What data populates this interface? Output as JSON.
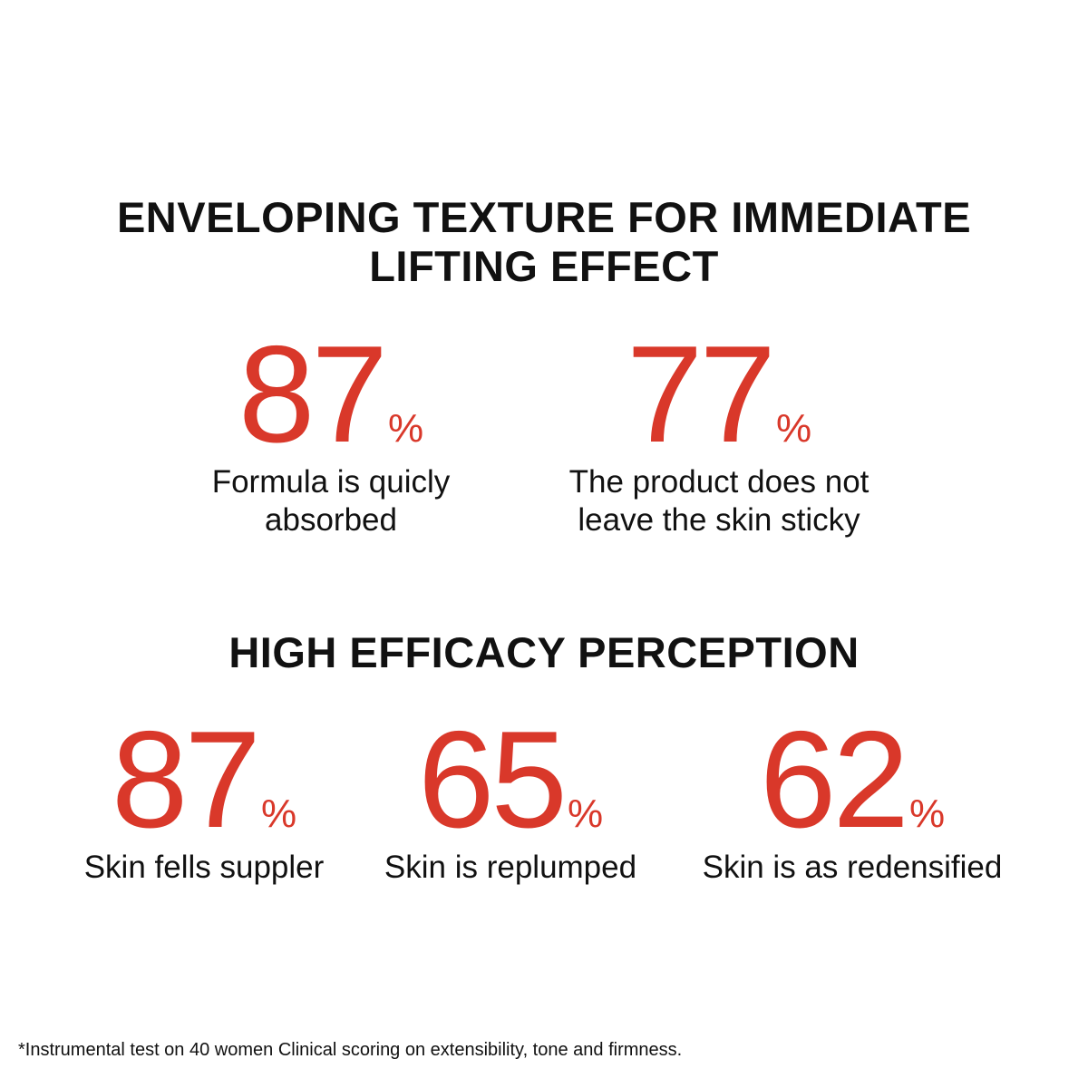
{
  "accent_color": "#d9382a",
  "section1": {
    "title_line1": "ENVELOPING TEXTURE FOR IMMEDIATE",
    "title_line2": "LIFTING EFFECT",
    "stats": [
      {
        "value": "87",
        "unit": "%",
        "caption_line1": "Formula is quicly",
        "caption_line2": "absorbed"
      },
      {
        "value": "77",
        "unit": "%",
        "caption_line1": "The product does not",
        "caption_line2": "leave the skin sticky"
      }
    ]
  },
  "section2": {
    "title": "HIGH EFFICACY PERCEPTION",
    "stats": [
      {
        "value": "87",
        "unit": "%",
        "caption": "Skin fells suppler"
      },
      {
        "value": "65",
        "unit": "%",
        "caption": "Skin is replumped"
      },
      {
        "value": "62",
        "unit": "%",
        "caption": "Skin is as redensified"
      }
    ]
  },
  "footnote": "*Instrumental test on 40 women Clinical scoring on extensibility, tone and firmness."
}
